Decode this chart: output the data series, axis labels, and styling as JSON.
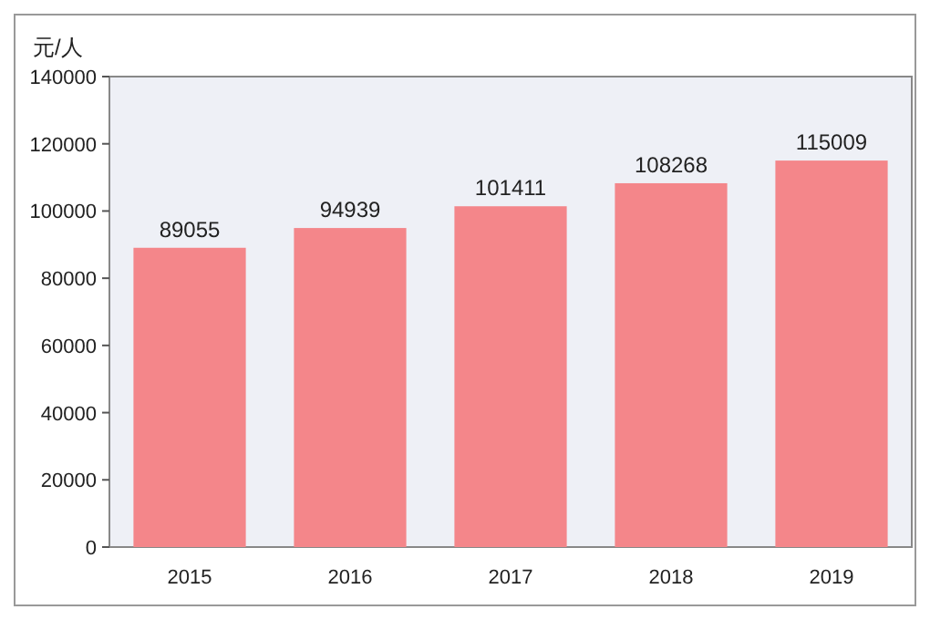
{
  "chart_data": {
    "type": "bar",
    "ylabel": "元/人",
    "categories": [
      "2015",
      "2016",
      "2017",
      "2018",
      "2019"
    ],
    "values": [
      89055,
      94939,
      101411,
      108268,
      115009
    ],
    "color": "#f4868a",
    "ylim": [
      0,
      140000
    ],
    "yticks": [
      0,
      20000,
      40000,
      60000,
      80000,
      100000,
      120000,
      140000
    ],
    "data_labels": true
  }
}
